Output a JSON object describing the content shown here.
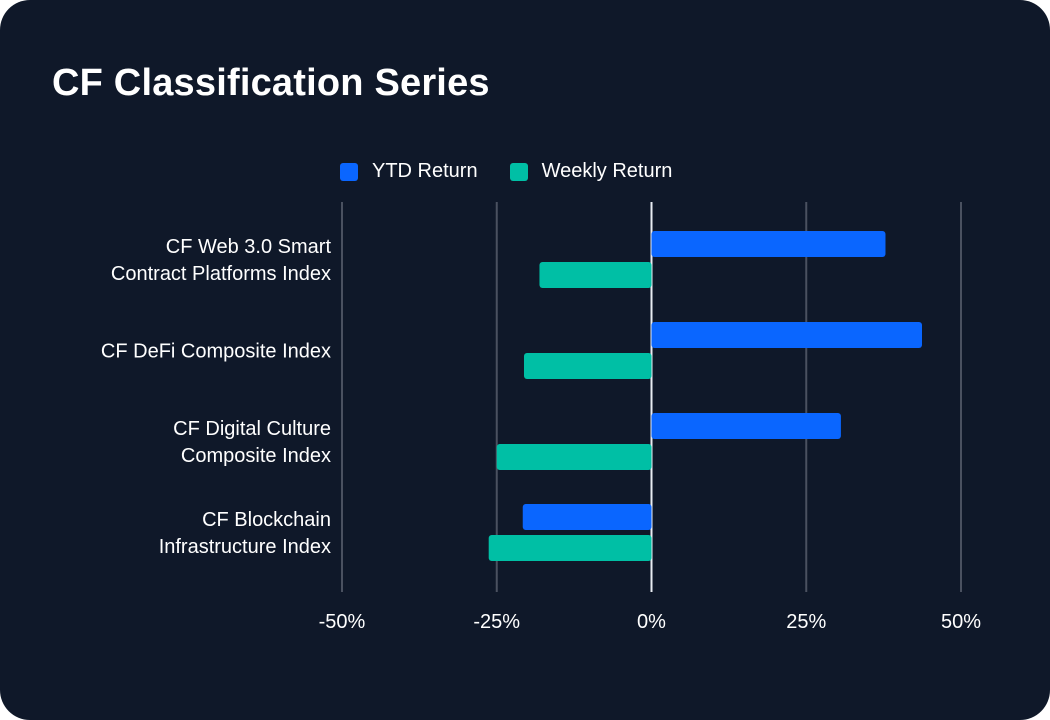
{
  "chart_data": {
    "type": "bar",
    "orientation": "horizontal",
    "title": "CF Classification Series",
    "categories": [
      [
        "CF Web 3.0 Smart",
        "Contract Platforms Index"
      ],
      [
        "CF DeFi Composite Index"
      ],
      [
        "CF Digital Culture",
        "Composite Index"
      ],
      [
        "CF Blockchain",
        "Infrastructure Index"
      ]
    ],
    "series": [
      {
        "name": "YTD Return",
        "color": "#0a66ff",
        "values": [
          37.8,
          43.7,
          30.6,
          -20.8
        ]
      },
      {
        "name": "Weekly Return",
        "color": "#00bfa5",
        "values": [
          -18.1,
          -20.6,
          -25.0,
          -26.3
        ]
      }
    ],
    "xlim": [
      -50,
      50
    ],
    "xticks": [
      -50,
      -25,
      0,
      25,
      50
    ],
    "xtick_labels": [
      "-50%",
      "-25%",
      "0%",
      "25%",
      "50%"
    ],
    "legend_position": "top",
    "grid": true
  }
}
